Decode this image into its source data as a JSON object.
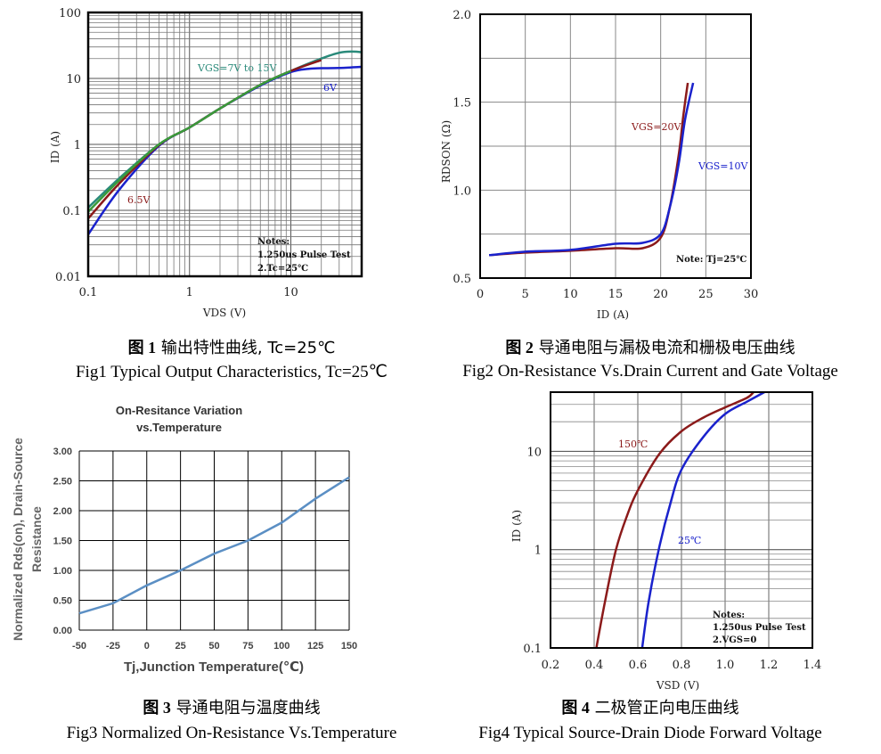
{
  "captions": {
    "fig1_cn_num": "图 1",
    "fig1_cn": "输出特性曲线, Tc=25℃",
    "fig1_en": "Fig1 Typical Output Characteristics, Tc=25℃",
    "fig2_cn_num": "图 2",
    "fig2_cn": "导通电阻与漏极电流和栅极电压曲线",
    "fig2_en": "Fig2 On-Resistance Vs.Drain Current and Gate Voltage",
    "fig3_cn_num": "图 3",
    "fig3_cn": "导通电阻与温度曲线",
    "fig3_en": "Fig3 Normalized On-Resistance Vs.Temperature",
    "fig4_cn_num": "图 4",
    "fig4_cn": "二极管正向电压曲线",
    "fig4_en": "Fig4 Typical Source-Drain Diode Forward Voltage"
  },
  "chart_data": [
    {
      "id": "fig1",
      "type": "line",
      "xscale": "log",
      "yscale": "log",
      "xlim": [
        0.1,
        50
      ],
      "ylim": [
        0.01,
        100
      ],
      "xlabel": "VDS (V)",
      "ylabel": "ID (A)",
      "xticks": [
        {
          "v": 0.1,
          "label": "0.1"
        },
        {
          "v": 1,
          "label": "1"
        },
        {
          "v": 10,
          "label": "10"
        }
      ],
      "yticks": [
        {
          "v": 0.01,
          "label": "0.01"
        },
        {
          "v": 0.1,
          "label": "0.1"
        },
        {
          "v": 1,
          "label": "1"
        },
        {
          "v": 10,
          "label": "10"
        },
        {
          "v": 100,
          "label": "100"
        }
      ],
      "series": [
        {
          "name": "VGS=7V to 15V",
          "color": "#2a8a7a",
          "x": [
            0.1,
            0.2,
            0.5,
            1,
            2,
            5,
            10,
            20,
            30,
            40,
            50
          ],
          "y": [
            0.11,
            0.3,
            1.0,
            1.8,
            3.5,
            8.0,
            13.0,
            20.0,
            24.5,
            25.5,
            25.0
          ]
        },
        {
          "name": "6V",
          "color": "#1a22cc",
          "x": [
            0.1,
            0.2,
            0.5,
            1,
            2,
            5,
            10,
            15,
            20,
            30,
            50
          ],
          "y": [
            0.043,
            0.2,
            0.95,
            1.8,
            3.5,
            7.8,
            12.5,
            14.0,
            14.3,
            14.4,
            15.0
          ]
        },
        {
          "name": "6.5V",
          "color": "#8b1a1a",
          "x": [
            0.1,
            0.2,
            0.5,
            1,
            2,
            5,
            10,
            20
          ],
          "y": [
            0.075,
            0.25,
            0.98,
            1.8,
            3.5,
            8.0,
            13.0,
            19.0
          ]
        },
        {
          "name": "VGS=7V to 15V (green)",
          "color": "#3a9a3a",
          "x": [
            0.1,
            0.2,
            0.5,
            1,
            2,
            5,
            10
          ],
          "y": [
            0.095,
            0.28,
            1.0,
            1.8,
            3.5,
            8.0,
            13.0
          ]
        }
      ],
      "labels": [
        {
          "text": "VGS=7V to 15V",
          "color": "#2a8a7a"
        },
        {
          "text": "6V",
          "color": "#1a22cc"
        },
        {
          "text": "6.5V",
          "color": "#8b1a1a"
        }
      ],
      "notes": [
        "Notes:",
        "1.250us Pulse Test",
        "2.Tc=25℃"
      ]
    },
    {
      "id": "fig2",
      "type": "line",
      "xlim": [
        0,
        30
      ],
      "ylim": [
        0.5,
        2.0
      ],
      "xlabel": "ID (A)",
      "ylabel": "RDSON (Ω)",
      "xticks": [
        0,
        5,
        10,
        15,
        20,
        25,
        30
      ],
      "yticks": [
        {
          "v": 0.5,
          "label": "0.5"
        },
        {
          "v": 1.0,
          "label": "1.0"
        },
        {
          "v": 1.5,
          "label": "1.5"
        },
        {
          "v": 2.0,
          "label": "2.0"
        }
      ],
      "series": [
        {
          "name": "VGS=20V",
          "color": "#8b1a1a",
          "x": [
            1,
            5,
            10,
            15,
            18,
            20,
            21,
            22,
            22.5,
            23
          ],
          "y": [
            0.63,
            0.645,
            0.655,
            0.67,
            0.67,
            0.73,
            0.9,
            1.2,
            1.42,
            1.61
          ]
        },
        {
          "name": "VGS=10V",
          "color": "#1a22cc",
          "x": [
            1,
            5,
            10,
            15,
            18,
            20,
            21,
            22,
            22.7,
            23.6
          ],
          "y": [
            0.63,
            0.65,
            0.66,
            0.695,
            0.7,
            0.75,
            0.9,
            1.15,
            1.4,
            1.61
          ]
        }
      ],
      "labels": [
        {
          "text": "VGS=20V",
          "color": "#8b1a1a"
        },
        {
          "text": "VGS=10V",
          "color": "#1a22cc"
        }
      ],
      "notes": [
        "Note: Tj=25℃"
      ]
    },
    {
      "id": "fig3",
      "type": "line",
      "title": "On-Resitance Variation vs.Temperature",
      "title_lines": [
        "On-Resitance Variation",
        "vs.Temperature"
      ],
      "xlim": [
        -50,
        150
      ],
      "ylim": [
        0,
        3.0
      ],
      "xlabel": "Tj,Junction Temperature(℃)",
      "ylabel_lines": [
        "Normalized Rds(on), Drain-Source",
        "Resistance"
      ],
      "xticks": [
        {
          "v": -50,
          "label": "-50"
        },
        {
          "v": -25,
          "label": "-25"
        },
        {
          "v": 0,
          "label": "0"
        },
        {
          "v": 25,
          "label": "25"
        },
        {
          "v": 50,
          "label": "50"
        },
        {
          "v": 75,
          "label": "75"
        },
        {
          "v": 100,
          "label": "100"
        },
        {
          "v": 125,
          "label": "125"
        },
        {
          "v": 150,
          "label": "150"
        }
      ],
      "yticks": [
        {
          "v": 0,
          "label": "0.00"
        },
        {
          "v": 0.5,
          "label": "0.50"
        },
        {
          "v": 1.0,
          "label": "1.00"
        },
        {
          "v": 1.5,
          "label": "1.50"
        },
        {
          "v": 2.0,
          "label": "2.00"
        },
        {
          "v": 2.5,
          "label": "2.50"
        },
        {
          "v": 3.0,
          "label": "3.00"
        }
      ],
      "series": [
        {
          "name": "Rds(on)",
          "color": "#5b8fc4",
          "x": [
            -50,
            -25,
            0,
            25,
            50,
            75,
            100,
            125,
            150
          ],
          "y": [
            0.28,
            0.45,
            0.75,
            1.0,
            1.28,
            1.5,
            1.8,
            2.2,
            2.56
          ]
        }
      ]
    },
    {
      "id": "fig4",
      "type": "line",
      "xscale": "linear",
      "yscale": "log",
      "xlim": [
        0.2,
        1.4
      ],
      "ylim": [
        0.1,
        40
      ],
      "xlabel": "VSD (V)",
      "ylabel": "ID (A)",
      "xticks": [
        {
          "v": 0.2,
          "label": "0.2"
        },
        {
          "v": 0.4,
          "label": "0.4"
        },
        {
          "v": 0.6,
          "label": "0.6"
        },
        {
          "v": 0.8,
          "label": "0.8"
        },
        {
          "v": 1.0,
          "label": "1.0"
        },
        {
          "v": 1.2,
          "label": "1.2"
        },
        {
          "v": 1.4,
          "label": "1.4"
        }
      ],
      "yticks": [
        {
          "v": 0.1,
          "label": "0.1"
        },
        {
          "v": 1,
          "label": "1"
        },
        {
          "v": 10,
          "label": "10"
        }
      ],
      "series": [
        {
          "name": "150℃",
          "color": "#8b1a1a",
          "x": [
            0.41,
            0.45,
            0.5,
            0.55,
            0.6,
            0.7,
            0.8,
            0.9,
            1.0,
            1.1,
            1.13
          ],
          "y": [
            0.1,
            0.3,
            1.0,
            2.2,
            4.0,
            9.5,
            16.0,
            22.0,
            28.0,
            35.0,
            40.0
          ]
        },
        {
          "name": "25℃",
          "color": "#1a22cc",
          "x": [
            0.62,
            0.65,
            0.7,
            0.75,
            0.8,
            0.9,
            1.0,
            1.1,
            1.18
          ],
          "y": [
            0.1,
            0.3,
            1.1,
            3.0,
            6.5,
            14.0,
            24.0,
            32.0,
            40.0
          ]
        }
      ],
      "labels": [
        {
          "text": "150℃",
          "color": "#8b1a1a"
        },
        {
          "text": "25℃",
          "color": "#1a22cc"
        }
      ],
      "notes": [
        "Notes:",
        "1.250us Pulse Test",
        "2.VGS=0"
      ]
    }
  ]
}
